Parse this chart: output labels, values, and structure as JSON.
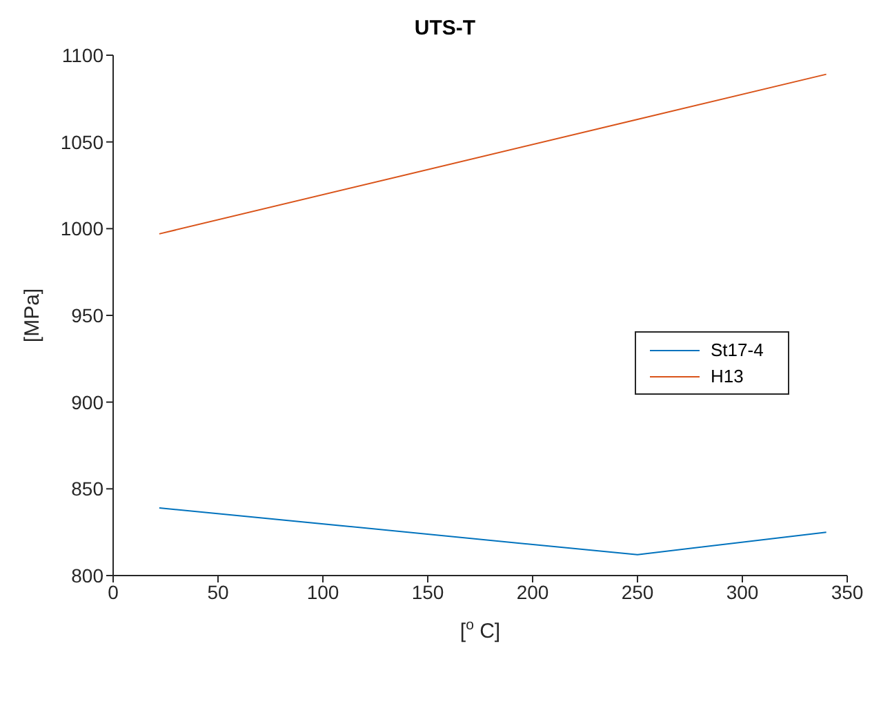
{
  "chart_data": {
    "type": "line",
    "title": "UTS-T",
    "xlabel": "[$^{o}$ C]",
    "ylabel": "[MPa]",
    "x": [
      22,
      250,
      340
    ],
    "series": [
      {
        "name": "St17-4",
        "color": "#0072bd",
        "values": [
          839,
          812,
          825
        ]
      },
      {
        "name": "H13",
        "color": "#d95319",
        "values": [
          997,
          1063,
          1089
        ]
      }
    ],
    "xlim": [
      0,
      350
    ],
    "xticks": [
      0,
      50,
      100,
      150,
      200,
      250,
      300,
      350
    ],
    "ylim": [
      800,
      1100
    ],
    "yticks": [
      800,
      850,
      900,
      950,
      1000,
      1050,
      1100
    ],
    "grid": false,
    "legend": "right",
    "marker": "none",
    "line_style": "solid"
  }
}
